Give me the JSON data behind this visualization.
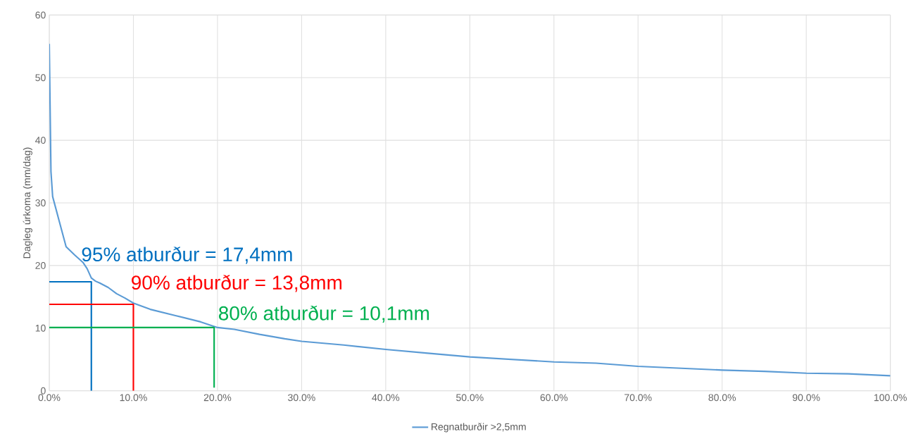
{
  "chart_data": {
    "type": "line",
    "ylabel": "Dagleg úrkoma (mm/dag)",
    "xlim": [
      0,
      100
    ],
    "ylim": [
      0,
      60
    ],
    "xticks": [
      {
        "value": 0,
        "label": "0.0%"
      },
      {
        "value": 10,
        "label": "10.0%"
      },
      {
        "value": 20,
        "label": "20.0%"
      },
      {
        "value": 30,
        "label": "30.0%"
      },
      {
        "value": 40,
        "label": "40.0%"
      },
      {
        "value": 50,
        "label": "50.0%"
      },
      {
        "value": 60,
        "label": "60.0%"
      },
      {
        "value": 70,
        "label": "70.0%"
      },
      {
        "value": 80,
        "label": "80.0%"
      },
      {
        "value": 90,
        "label": "90.0%"
      },
      {
        "value": 100,
        "label": "100.0%"
      }
    ],
    "yticks": [
      0,
      10,
      20,
      30,
      40,
      50,
      60
    ],
    "grid": true,
    "legend": "bottom",
    "marker": "none",
    "series": [
      {
        "name": "Regnatburðir >2,5mm",
        "color": "#5b9bd5",
        "x": [
          0,
          0.1,
          0.2,
          0.4,
          0.8,
          1.2,
          1.6,
          2,
          3,
          4,
          4.5,
          5,
          5.5,
          6,
          7,
          8,
          9,
          10,
          12,
          15,
          18,
          20,
          22,
          25,
          28,
          30,
          35,
          40,
          45,
          50,
          55,
          60,
          65,
          70,
          75,
          80,
          85,
          90,
          95,
          100
        ],
        "values": [
          55.4,
          45,
          35,
          31,
          29,
          27,
          25,
          23,
          21.7,
          20.5,
          19.5,
          18,
          17.5,
          17.2,
          16.5,
          15.5,
          14.8,
          14,
          13,
          12,
          11,
          10.1,
          9.8,
          9,
          8.3,
          7.9,
          7.3,
          6.6,
          6,
          5.4,
          5,
          4.6,
          4.4,
          3.9,
          3.6,
          3.3,
          3.1,
          2.8,
          2.7,
          2.4
        ]
      },
      {
        "color": "#0070c0",
        "x": [
          0,
          5,
          5
        ],
        "values": [
          17.4,
          17.4,
          0
        ]
      },
      {
        "color": "#ff0000",
        "x": [
          0,
          10,
          10
        ],
        "values": [
          13.8,
          13.8,
          0
        ]
      },
      {
        "color": "#00b050",
        "x": [
          0,
          19.6,
          19.6
        ],
        "values": [
          10.1,
          10.1,
          0.5
        ]
      }
    ],
    "annotations": [
      {
        "text": "95% atburður = 17,4mm",
        "x": 5,
        "y": 17.4
      },
      {
        "text": "90% atburður = 13,8mm",
        "x": 10,
        "y": 13.8
      },
      {
        "text": "80% atburður = 10,1mm",
        "x": 19.6,
        "y": 10.1
      }
    ]
  }
}
